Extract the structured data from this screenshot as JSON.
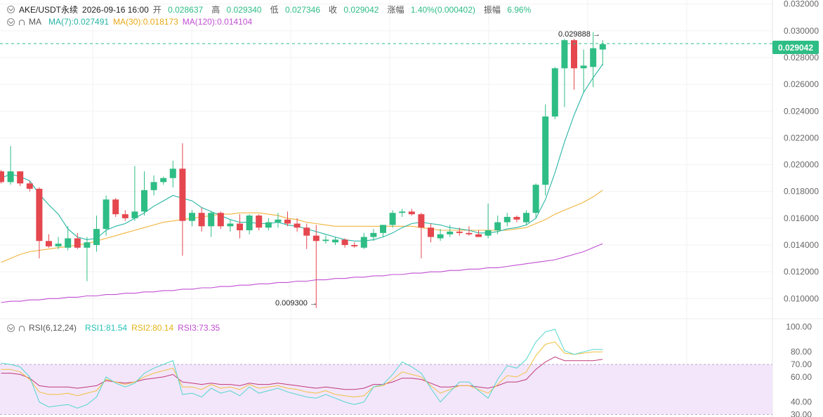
{
  "header": {
    "symbol": "AKE/USDT永续",
    "datetime": "2026-09-16 16:00",
    "open_label": "开",
    "open": "0.028637",
    "high_label": "高",
    "high": "0.029340",
    "low_label": "低",
    "low": "0.027346",
    "close_label": "收",
    "close": "0.029042",
    "change_label": "涨幅",
    "change": "1.40%(0.000402)",
    "amplitude_label": "振幅",
    "amplitude": "6.96%"
  },
  "ma_legend": {
    "label": "MA",
    "ma7": "MA(7):0.027491",
    "ma30": "MA(30):0.018173",
    "ma120": "MA(120):0.014104"
  },
  "rsi_legend": {
    "label": "RSI(6,12,24)",
    "rsi1": "RSI1:81.54",
    "rsi2": "RSI2:80.14",
    "rsi3": "RSI3:73.35"
  },
  "annotations": {
    "high_marker": "0.029888",
    "low_marker": "0.009300",
    "current_price": "0.029042"
  },
  "colors": {
    "up": "#2ebd85",
    "down": "#e5474f",
    "ma7": "#26b5a4",
    "ma30": "#f0b43c",
    "ma120": "#c04fd1",
    "rsi1": "#52d6cc",
    "rsi2": "#f0c040",
    "rsi3": "#c0397a",
    "rsi_band": "#f3e6fb"
  },
  "chart_data": {
    "type": "candlestick",
    "price_axis": {
      "range": [
        0.0086,
        0.0323
      ],
      "ticks": [
        "0.032000",
        "0.030000",
        "0.028000",
        "0.026000",
        "0.024000",
        "0.022000",
        "0.020000",
        "0.018000",
        "0.016000",
        "0.014000",
        "0.012000",
        "0.010000"
      ]
    },
    "candles": [
      {
        "o": 0.0195,
        "h": 0.0196,
        "l": 0.0186,
        "c": 0.0187
      },
      {
        "o": 0.0187,
        "h": 0.0214,
        "l": 0.0185,
        "c": 0.0195
      },
      {
        "o": 0.0195,
        "h": 0.0195,
        "l": 0.0184,
        "c": 0.0186
      },
      {
        "o": 0.0186,
        "h": 0.0188,
        "l": 0.018,
        "c": 0.0182
      },
      {
        "o": 0.0182,
        "h": 0.0183,
        "l": 0.013,
        "c": 0.0143
      },
      {
        "o": 0.0143,
        "h": 0.0148,
        "l": 0.0138,
        "c": 0.0139
      },
      {
        "o": 0.0139,
        "h": 0.0146,
        "l": 0.0137,
        "c": 0.0141
      },
      {
        "o": 0.0138,
        "h": 0.0154,
        "l": 0.0136,
        "c": 0.0145
      },
      {
        "o": 0.0145,
        "h": 0.0149,
        "l": 0.0137,
        "c": 0.0138
      },
      {
        "o": 0.0138,
        "h": 0.0146,
        "l": 0.0113,
        "c": 0.0142
      },
      {
        "o": 0.014,
        "h": 0.0162,
        "l": 0.0135,
        "c": 0.0152
      },
      {
        "o": 0.0152,
        "h": 0.0177,
        "l": 0.0147,
        "c": 0.0174
      },
      {
        "o": 0.0174,
        "h": 0.0175,
        "l": 0.0161,
        "c": 0.0163
      },
      {
        "o": 0.0163,
        "h": 0.0166,
        "l": 0.0158,
        "c": 0.016
      },
      {
        "o": 0.016,
        "h": 0.0199,
        "l": 0.0158,
        "c": 0.0165
      },
      {
        "o": 0.0165,
        "h": 0.0195,
        "l": 0.0162,
        "c": 0.0181
      },
      {
        "o": 0.0181,
        "h": 0.0192,
        "l": 0.0177,
        "c": 0.0187
      },
      {
        "o": 0.0187,
        "h": 0.0191,
        "l": 0.0185,
        "c": 0.019
      },
      {
        "o": 0.019,
        "h": 0.0203,
        "l": 0.0183,
        "c": 0.0197
      },
      {
        "o": 0.0197,
        "h": 0.0216,
        "l": 0.0132,
        "c": 0.0158
      },
      {
        "o": 0.0158,
        "h": 0.0166,
        "l": 0.0154,
        "c": 0.0164
      },
      {
        "o": 0.0164,
        "h": 0.0168,
        "l": 0.015,
        "c": 0.0154
      },
      {
        "o": 0.0154,
        "h": 0.0165,
        "l": 0.0146,
        "c": 0.0164
      },
      {
        "o": 0.0164,
        "h": 0.0165,
        "l": 0.0152,
        "c": 0.0154
      },
      {
        "o": 0.0154,
        "h": 0.0159,
        "l": 0.015,
        "c": 0.0156
      },
      {
        "o": 0.0156,
        "h": 0.0163,
        "l": 0.0145,
        "c": 0.0151
      },
      {
        "o": 0.0151,
        "h": 0.0163,
        "l": 0.0148,
        "c": 0.0162
      },
      {
        "o": 0.0162,
        "h": 0.0163,
        "l": 0.0151,
        "c": 0.0153
      },
      {
        "o": 0.0153,
        "h": 0.016,
        "l": 0.0151,
        "c": 0.0157
      },
      {
        "o": 0.0157,
        "h": 0.0164,
        "l": 0.0153,
        "c": 0.0159
      },
      {
        "o": 0.0159,
        "h": 0.0165,
        "l": 0.0154,
        "c": 0.0156
      },
      {
        "o": 0.0156,
        "h": 0.016,
        "l": 0.015,
        "c": 0.0153
      },
      {
        "o": 0.0153,
        "h": 0.0156,
        "l": 0.0137,
        "c": 0.0147
      },
      {
        "o": 0.0147,
        "h": 0.0155,
        "l": 0.0093,
        "c": 0.0143
      },
      {
        "o": 0.0143,
        "h": 0.0147,
        "l": 0.0141,
        "c": 0.0144
      },
      {
        "o": 0.0142,
        "h": 0.0146,
        "l": 0.014,
        "c": 0.0144
      },
      {
        "o": 0.0144,
        "h": 0.0145,
        "l": 0.0138,
        "c": 0.014
      },
      {
        "o": 0.014,
        "h": 0.0142,
        "l": 0.0138,
        "c": 0.0139
      },
      {
        "o": 0.0138,
        "h": 0.0149,
        "l": 0.0137,
        "c": 0.0146
      },
      {
        "o": 0.0146,
        "h": 0.0152,
        "l": 0.0143,
        "c": 0.0149
      },
      {
        "o": 0.0149,
        "h": 0.0155,
        "l": 0.0146,
        "c": 0.0155
      },
      {
        "o": 0.0155,
        "h": 0.0166,
        "l": 0.0153,
        "c": 0.0164
      },
      {
        "o": 0.0164,
        "h": 0.0167,
        "l": 0.0161,
        "c": 0.0165
      },
      {
        "o": 0.0165,
        "h": 0.0167,
        "l": 0.0162,
        "c": 0.0163
      },
      {
        "o": 0.0163,
        "h": 0.0164,
        "l": 0.013,
        "c": 0.0153
      },
      {
        "o": 0.0153,
        "h": 0.0156,
        "l": 0.0142,
        "c": 0.0146
      },
      {
        "o": 0.0145,
        "h": 0.0152,
        "l": 0.0143,
        "c": 0.0148
      },
      {
        "o": 0.0148,
        "h": 0.0155,
        "l": 0.0146,
        "c": 0.015
      },
      {
        "o": 0.015,
        "h": 0.0153,
        "l": 0.0147,
        "c": 0.0149
      },
      {
        "o": 0.0149,
        "h": 0.0154,
        "l": 0.0147,
        "c": 0.0148
      },
      {
        "o": 0.0148,
        "h": 0.0151,
        "l": 0.0146,
        "c": 0.0146
      },
      {
        "o": 0.0147,
        "h": 0.0171,
        "l": 0.0145,
        "c": 0.0151
      },
      {
        "o": 0.0151,
        "h": 0.0162,
        "l": 0.0148,
        "c": 0.0157
      },
      {
        "o": 0.0157,
        "h": 0.0164,
        "l": 0.0154,
        "c": 0.0161
      },
      {
        "o": 0.0161,
        "h": 0.0162,
        "l": 0.0157,
        "c": 0.0159
      },
      {
        "o": 0.0157,
        "h": 0.0166,
        "l": 0.0155,
        "c": 0.0164
      },
      {
        "o": 0.0164,
        "h": 0.0186,
        "l": 0.016,
        "c": 0.0185
      },
      {
        "o": 0.0185,
        "h": 0.0245,
        "l": 0.0177,
        "c": 0.0236
      },
      {
        "o": 0.0236,
        "h": 0.0273,
        "l": 0.0234,
        "c": 0.0272
      },
      {
        "o": 0.0272,
        "h": 0.0294,
        "l": 0.0243,
        "c": 0.0293
      },
      {
        "o": 0.0293,
        "h": 0.0294,
        "l": 0.0256,
        "c": 0.0272
      },
      {
        "o": 0.0272,
        "h": 0.0286,
        "l": 0.0254,
        "c": 0.0274
      },
      {
        "o": 0.0273,
        "h": 0.0299,
        "l": 0.0258,
        "c": 0.0287
      },
      {
        "o": 0.0286,
        "h": 0.0293,
        "l": 0.0274,
        "c": 0.029
      }
    ],
    "ma7": [
      0.019,
      0.0193,
      0.0191,
      0.0188,
      0.0178,
      0.017,
      0.0163,
      0.0152,
      0.0146,
      0.0144,
      0.0145,
      0.0151,
      0.0154,
      0.0156,
      0.016,
      0.0164,
      0.0169,
      0.0173,
      0.0177,
      0.0175,
      0.0173,
      0.0168,
      0.0165,
      0.0162,
      0.0159,
      0.0157,
      0.0157,
      0.0156,
      0.0156,
      0.0157,
      0.0155,
      0.0154,
      0.0152,
      0.015,
      0.0148,
      0.0146,
      0.0144,
      0.0143,
      0.0143,
      0.0144,
      0.0146,
      0.0149,
      0.0153,
      0.0156,
      0.0157,
      0.0156,
      0.0155,
      0.0153,
      0.0152,
      0.0151,
      0.0149,
      0.0149,
      0.015,
      0.0152,
      0.0153,
      0.0155,
      0.016,
      0.0174,
      0.0194,
      0.0217,
      0.0237,
      0.0254,
      0.0265,
      0.0275
    ],
    "ma30": [
      0.0127,
      0.013,
      0.0133,
      0.0135,
      0.0136,
      0.0137,
      0.0138,
      0.0139,
      0.014,
      0.0141,
      0.0143,
      0.0145,
      0.0147,
      0.0149,
      0.0151,
      0.0153,
      0.0155,
      0.0157,
      0.0158,
      0.0159,
      0.016,
      0.0161,
      0.0162,
      0.0163,
      0.0163,
      0.0164,
      0.0164,
      0.0164,
      0.0163,
      0.0162,
      0.016,
      0.0159,
      0.0157,
      0.0156,
      0.0155,
      0.0154,
      0.0154,
      0.0154,
      0.0154,
      0.0154,
      0.0154,
      0.0154,
      0.0154,
      0.0154,
      0.0153,
      0.0152,
      0.0151,
      0.0151,
      0.0151,
      0.0151,
      0.0151,
      0.0151,
      0.0151,
      0.0151,
      0.0152,
      0.0153,
      0.0156,
      0.0159,
      0.0163,
      0.0166,
      0.0169,
      0.0172,
      0.0176,
      0.0181
    ],
    "ma120": [
      0.0097,
      0.0098,
      0.0098,
      0.0099,
      0.0099,
      0.01,
      0.01,
      0.0101,
      0.0101,
      0.0102,
      0.0102,
      0.0103,
      0.0103,
      0.0104,
      0.0104,
      0.0105,
      0.0105,
      0.0106,
      0.0106,
      0.0107,
      0.0107,
      0.0108,
      0.0108,
      0.0109,
      0.0109,
      0.011,
      0.011,
      0.0111,
      0.0111,
      0.0112,
      0.0112,
      0.0113,
      0.0113,
      0.0114,
      0.0114,
      0.0115,
      0.0115,
      0.0116,
      0.0116,
      0.0117,
      0.0117,
      0.0118,
      0.0118,
      0.0119,
      0.0119,
      0.012,
      0.012,
      0.0121,
      0.0121,
      0.0122,
      0.0122,
      0.0123,
      0.0123,
      0.0124,
      0.0125,
      0.0126,
      0.0127,
      0.0128,
      0.0129,
      0.0131,
      0.0133,
      0.0135,
      0.0138,
      0.0141
    ],
    "rsi_axis": {
      "range": [
        28,
        102
      ],
      "ticks": [
        "100.00",
        "80.00",
        "70.00",
        "60.00",
        "40.00",
        "30.00"
      ],
      "band": [
        30,
        70
      ]
    },
    "rsi1": [
      71,
      70,
      68,
      60,
      40,
      36,
      37,
      38,
      35,
      38,
      44,
      60,
      55,
      52,
      55,
      63,
      67,
      70,
      73,
      46,
      47,
      44,
      51,
      47,
      49,
      45,
      52,
      47,
      49,
      51,
      48,
      46,
      44,
      43,
      46,
      43,
      40,
      38,
      40,
      52,
      54,
      62,
      72,
      68,
      63,
      51,
      40,
      48,
      56,
      56,
      49,
      43,
      58,
      69,
      67,
      74,
      88,
      96,
      98,
      81,
      78,
      80,
      82,
      82
    ],
    "rsi2": [
      66,
      66,
      64,
      58,
      48,
      46,
      46,
      47,
      45,
      47,
      49,
      58,
      56,
      54,
      56,
      60,
      63,
      65,
      67,
      52,
      52,
      50,
      54,
      51,
      52,
      50,
      54,
      51,
      52,
      53,
      51,
      50,
      48,
      47,
      49,
      46,
      45,
      44,
      45,
      52,
      53,
      58,
      64,
      62,
      60,
      53,
      47,
      50,
      53,
      53,
      50,
      47,
      54,
      61,
      60,
      64,
      77,
      86,
      88,
      79,
      78,
      79,
      80,
      80
    ],
    "rsi3": [
      63,
      63,
      62,
      59,
      53,
      52,
      52,
      52,
      51,
      52,
      53,
      57,
      56,
      55,
      56,
      58,
      59,
      60,
      62,
      56,
      55,
      54,
      55,
      54,
      54,
      53,
      55,
      54,
      54,
      55,
      54,
      53,
      52,
      51,
      52,
      51,
      50,
      50,
      51,
      54,
      54,
      56,
      59,
      59,
      58,
      55,
      52,
      52,
      53,
      53,
      52,
      51,
      53,
      56,
      56,
      58,
      66,
      72,
      76,
      73,
      73,
      73,
      73,
      74
    ]
  }
}
